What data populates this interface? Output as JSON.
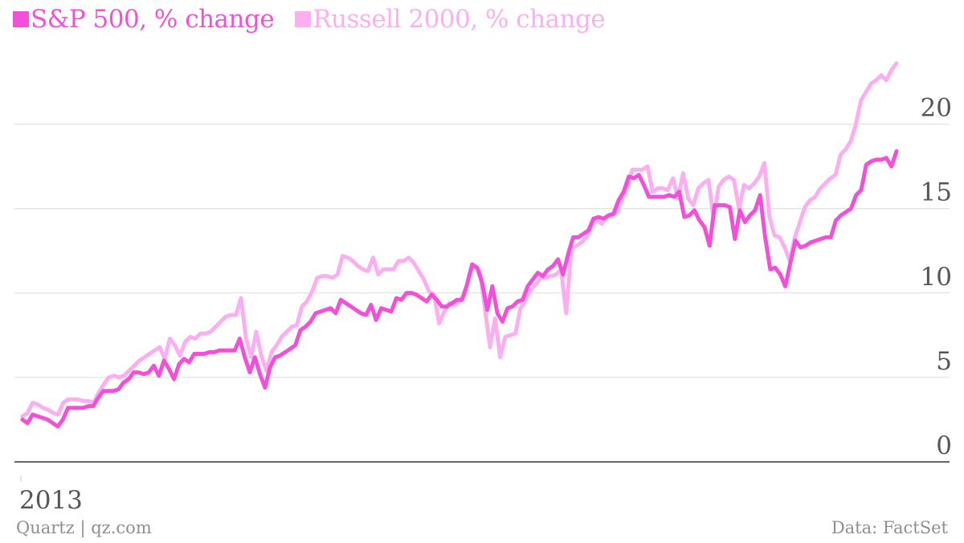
{
  "legend": [
    {
      "label": "S&P 500, % change",
      "color": "#f250d9"
    },
    {
      "label": "Russell 2000, % change",
      "color": "#fbaef0"
    }
  ],
  "footer": {
    "source": "Quartz | qz.com",
    "data_credit": "Data: FactSet"
  },
  "chart_data": {
    "type": "line",
    "title": "",
    "xlabel": "",
    "ylabel": "",
    "x_tick_labels": [
      "2013"
    ],
    "yticks": [
      0,
      5,
      10,
      15,
      20
    ],
    "ylim": [
      0,
      24.5
    ],
    "grid": true,
    "legend_position": "top-left",
    "series": [
      {
        "name": "S&P 500, % change",
        "color": "#f250d9",
        "values": [
          2.5,
          2.3,
          2.8,
          2.7,
          2.6,
          2.5,
          2.3,
          2.1,
          2.5,
          3.2,
          3.2,
          3.2,
          3.2,
          3.3,
          3.3,
          3.8,
          4.2,
          4.2,
          4.2,
          4.3,
          4.7,
          4.9,
          5.3,
          5.3,
          5.2,
          5.3,
          5.7,
          5.1,
          6,
          5.5,
          4.9,
          5.8,
          6.1,
          5.9,
          6.4,
          6.4,
          6.4,
          6.5,
          6.5,
          6.6,
          6.6,
          6.6,
          6.6,
          7.3,
          6.2,
          5.3,
          6.2,
          5.2,
          4.4,
          5.6,
          6.2,
          6.3,
          6.5,
          6.7,
          6.9,
          7.8,
          8,
          8.3,
          8.8,
          8.9,
          9,
          9.1,
          8.8,
          9.6,
          9.4,
          9.2,
          9,
          8.8,
          8.7,
          9.3,
          8.4,
          9.1,
          9,
          8.9,
          9.7,
          9.6,
          10,
          10,
          9.9,
          9.7,
          9.5,
          9.9,
          9.6,
          9.2,
          9.2,
          9.4,
          9.6,
          9.6,
          10.5,
          11.7,
          11.5,
          10.6,
          9,
          10.4,
          8.8,
          8.3,
          9.1,
          9.2,
          9.5,
          9.6,
          10.4,
          10.8,
          11.2,
          11,
          11.4,
          11.6,
          12,
          11.1,
          12.3,
          13.3,
          13.3,
          13.5,
          13.7,
          14.4,
          14.5,
          14.4,
          14.6,
          14.7,
          15.5,
          16,
          16.9,
          16.8,
          17,
          16.4,
          15.7,
          15.7,
          15.7,
          15.7,
          15.8,
          15.7,
          16,
          14.5,
          14.6,
          14.9,
          14.3,
          13.9,
          12.8,
          15.2,
          15.2,
          15.2,
          15.1,
          13.2,
          14.9,
          14.2,
          14.6,
          14.9,
          15.8,
          13.3,
          11.4,
          11.5,
          11.1,
          10.4,
          11.8,
          13.1,
          12.7,
          12.8,
          13,
          13.1,
          13.2,
          13.3,
          13.3,
          14.3,
          14.6,
          14.8,
          15,
          15.8,
          16.1,
          17.6,
          17.8,
          17.9,
          17.9,
          18,
          17.5,
          18.4
        ]
      },
      {
        "name": "Russell 2000, % change",
        "color": "#fbaef0",
        "values": [
          2.7,
          2.9,
          3.5,
          3.4,
          3.2,
          3.1,
          2.9,
          2.8,
          3.5,
          3.7,
          3.7,
          3.7,
          3.6,
          3.6,
          3.5,
          4.1,
          4.6,
          5,
          5.1,
          5,
          5.1,
          5.4,
          5.7,
          6,
          6.2,
          6.4,
          6.6,
          6.8,
          6.1,
          7.3,
          6.9,
          6.3,
          7.1,
          7.4,
          7.3,
          7.6,
          7.6,
          7.7,
          8,
          8.3,
          8.6,
          8.7,
          8.7,
          9.7,
          7.3,
          6.2,
          7.7,
          6.3,
          5.4,
          6.5,
          6.9,
          7.4,
          7.7,
          8,
          8.1,
          9.2,
          9.5,
          10.1,
          10.9,
          11,
          11,
          10.9,
          11.1,
          12.2,
          12.1,
          11.9,
          11.6,
          11.4,
          11.3,
          12.1,
          11.1,
          11.4,
          11.4,
          11.4,
          11.9,
          11.9,
          12.1,
          11.8,
          11.3,
          10.8,
          10.1,
          9.9,
          8.2,
          8.9,
          9.4,
          9.3,
          9.5,
          9.9,
          11.2,
          11.6,
          11.3,
          9.1,
          6.8,
          8.5,
          6.2,
          7.4,
          7.5,
          7.6,
          9.1,
          9.6,
          10.2,
          10.5,
          10.9,
          10.9,
          11,
          11.1,
          11.4,
          8.8,
          12.6,
          12.8,
          13,
          13.3,
          14,
          14.3,
          14.1,
          14.5,
          14.6,
          14.8,
          15.6,
          16.2,
          17.3,
          17.3,
          17.3,
          17.5,
          16,
          16.2,
          16.2,
          16.1,
          16.8,
          15.6,
          17.1,
          15.6,
          15.2,
          16.2,
          16.5,
          16.7,
          14.4,
          16.3,
          16.7,
          16.9,
          16.7,
          15,
          16.4,
          16.2,
          16.5,
          16.9,
          17.7,
          14.5,
          13.4,
          13.3,
          12.7,
          11.9,
          13.3,
          14.2,
          15.1,
          15.5,
          15.7,
          16.2,
          16.5,
          16.8,
          17,
          18.2,
          18.5,
          19,
          20,
          21.4,
          21.9,
          22.4,
          22.6,
          22.9,
          22.6,
          23.2,
          23.6
        ]
      }
    ]
  }
}
